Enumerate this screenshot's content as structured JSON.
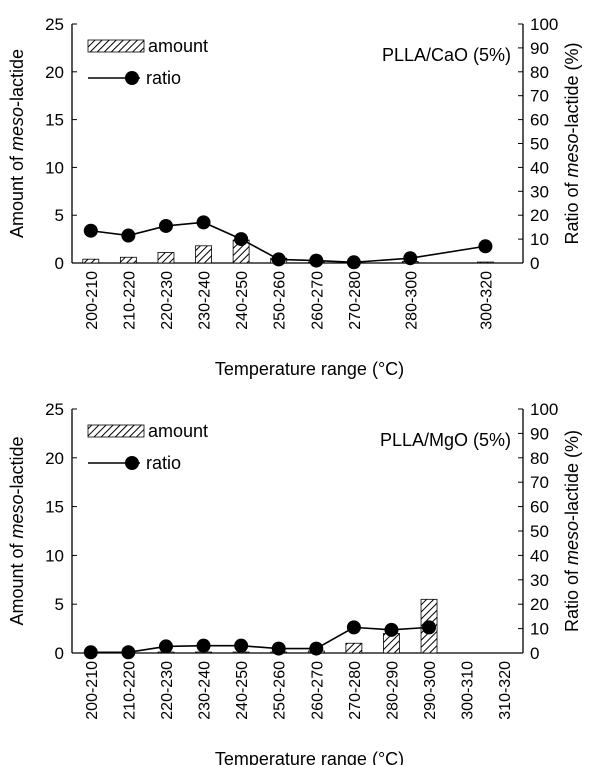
{
  "colors": {
    "axis": "#000000",
    "bar_fill": "#ffffff",
    "bar_hatch": "#000000",
    "marker": "#000000"
  },
  "chart_data": [
    {
      "type": "bar",
      "annotation": "PLLA/CaO (5%)",
      "xlabel": "Temperature range (°C)",
      "ylabel_left_pre": "Amount of ",
      "ylabel_left_it": "meso",
      "ylabel_left_post": "-lactide",
      "ylabel_right_pre": "Ratio of ",
      "ylabel_right_it": "meso",
      "ylabel_right_post": "-lactide (%)",
      "ylim_left": [
        0,
        25
      ],
      "yticks_left": [
        "0",
        "5",
        "10",
        "15",
        "20",
        "25"
      ],
      "ylim_right": [
        0,
        100
      ],
      "yticks_right": [
        "0",
        "10",
        "20",
        "30",
        "40",
        "50",
        "60",
        "70",
        "80",
        "90",
        "100"
      ],
      "categories": [
        "200-210",
        "210-220",
        "220-230",
        "230-240",
        "240-250",
        "250-260",
        "260-270",
        "270-280",
        "280-300",
        "300-320"
      ],
      "cat_weights": [
        1,
        1,
        1,
        1,
        1,
        1,
        1,
        1,
        2,
        2
      ],
      "legend": {
        "bar": "amount",
        "line": "ratio",
        "placement": "top-left"
      },
      "series": [
        {
          "name": "amount",
          "kind": "bar",
          "axis": "left",
          "values": [
            0.4,
            0.6,
            1.1,
            1.8,
            2.4,
            0.5,
            0.1,
            0.0,
            0.15,
            0.1
          ]
        },
        {
          "name": "ratio",
          "kind": "line",
          "axis": "right",
          "values": [
            13.5,
            11.5,
            15.5,
            17,
            10,
            1.5,
            1,
            0.3,
            2,
            7
          ]
        }
      ]
    },
    {
      "type": "bar",
      "annotation": "PLLA/MgO (5%)",
      "xlabel": "Temperature range (°C)",
      "ylabel_left_pre": "Amount of ",
      "ylabel_left_it": "meso",
      "ylabel_left_post": "-lactide",
      "ylabel_right_pre": "Ratio of ",
      "ylabel_right_it": "meso",
      "ylabel_right_post": "-lactide (%)",
      "ylim_left": [
        0,
        25
      ],
      "yticks_left": [
        "0",
        "5",
        "10",
        "15",
        "20",
        "25"
      ],
      "ylim_right": [
        0,
        100
      ],
      "yticks_right": [
        "0",
        "10",
        "20",
        "30",
        "40",
        "50",
        "60",
        "70",
        "80",
        "90",
        "100"
      ],
      "categories": [
        "200-210",
        "210-220",
        "220-230",
        "230-240",
        "240-250",
        "250-260",
        "260-270",
        "270-280",
        "280-290",
        "290-300",
        "300-310",
        "310-320"
      ],
      "cat_weights": [
        1,
        1,
        1,
        1,
        1,
        1,
        1,
        1,
        1,
        1,
        1,
        1
      ],
      "legend": {
        "bar": "amount",
        "line": "ratio",
        "placement": "top-left"
      },
      "series": [
        {
          "name": "amount",
          "kind": "bar",
          "axis": "left",
          "values": [
            0.0,
            0.0,
            0.1,
            0.1,
            0.1,
            0.1,
            0.2,
            1.0,
            2.0,
            5.5,
            null,
            null
          ]
        },
        {
          "name": "ratio",
          "kind": "line",
          "axis": "right",
          "values": [
            0.3,
            0.3,
            2.7,
            3,
            3,
            1.8,
            1.8,
            10.5,
            9.5,
            10.5,
            null,
            null
          ]
        }
      ]
    }
  ]
}
